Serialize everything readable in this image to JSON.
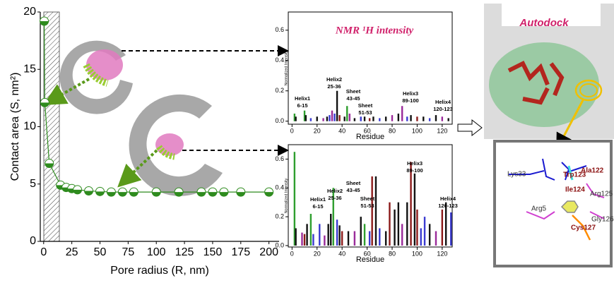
{
  "chart_data": [
    {
      "type": "line",
      "y_label": "Contact area (S, nm²)",
      "x_label": "Pore radius (R, nm)",
      "color": "#2e8b1e",
      "x": [
        0.5,
        1,
        5,
        15,
        20,
        25,
        30,
        40,
        50,
        60,
        70,
        80,
        100,
        120,
        140,
        150,
        160,
        175,
        200
      ],
      "values": [
        19.2,
        12.1,
        6.8,
        4.9,
        4.7,
        4.6,
        4.5,
        4.4,
        4.35,
        4.3,
        4.3,
        4.3,
        4.3,
        4.3,
        4.3,
        4.3,
        4.3,
        4.3,
        4.3
      ],
      "xlim": [
        -3,
        209
      ],
      "ylim": [
        0,
        20
      ],
      "xticks": [
        0,
        25,
        50,
        75,
        100,
        125,
        150,
        175,
        200
      ],
      "yticks": [
        0,
        5,
        10,
        15,
        20
      ]
    },
    {
      "type": "bar",
      "title": "NMR ¹H intensity",
      "x_label": "Residue",
      "y_label": "Normalized Intensity",
      "x": [
        2,
        3,
        10,
        11,
        15,
        20,
        25,
        28,
        30,
        32,
        34,
        36,
        38,
        42,
        44,
        46,
        50,
        55,
        58,
        62,
        65,
        70,
        75,
        80,
        85,
        88,
        92,
        95,
        100,
        105,
        110,
        115,
        120,
        125
      ],
      "values": [
        0.05,
        0.03,
        0.07,
        0.04,
        0.02,
        0.03,
        0.02,
        0.03,
        0.04,
        0.07,
        0.05,
        0.2,
        0.04,
        0.03,
        0.1,
        0.05,
        0.02,
        0.03,
        0.03,
        0.02,
        0.03,
        0.02,
        0.03,
        0.04,
        0.05,
        0.1,
        0.03,
        0.04,
        0.03,
        0.03,
        0.02,
        0.04,
        0.03,
        0.02
      ],
      "colors": [
        "#2e9e2e",
        "#111",
        "#2e9e2e",
        "#111",
        "#3a3ad0",
        "#111",
        "#9a2a9a",
        "#111",
        "#3a3ad0",
        "#9a2a9a",
        "#3a3ad0",
        "#111",
        "#8b1a1a",
        "#111",
        "#2e9e2e",
        "#9a2a9a",
        "#111",
        "#3a3ad0",
        "#111",
        "#8b1a1a",
        "#111",
        "#3a3ad0",
        "#111",
        "#9a2a9a",
        "#111",
        "#9a2a9a",
        "#3a3ad0",
        "#111",
        "#8b1a1a",
        "#111",
        "#3a3ad0",
        "#111",
        "#9a2a9a",
        "#111"
      ],
      "xlim": [
        -3,
        128
      ],
      "ylim": [
        -0.02,
        0.72
      ],
      "xticks": [
        0,
        20,
        40,
        60,
        80,
        100,
        120
      ],
      "yticks": [
        {
          "value": 0,
          "label": "0.0"
        },
        {
          "value": 0.2,
          "label": "0.2"
        },
        {
          "value": 0.4,
          "label": "0.4"
        },
        {
          "value": 0.6,
          "label": "0.6"
        }
      ],
      "annotations": [
        [
          "Helix1",
          "6-15"
        ],
        [
          "Helix2",
          "25-36"
        ],
        [
          "Sheet",
          "43-45"
        ],
        [
          "Sheet",
          "51-53"
        ],
        [
          "Helix3",
          "89-100"
        ],
        [
          "Helix4",
          "120-123"
        ]
      ]
    },
    {
      "type": "bar",
      "x_label": "Residue",
      "y_label": "Normalized Intensity",
      "x": [
        2,
        3,
        8,
        10,
        12,
        15,
        17,
        22,
        26,
        29,
        31,
        33,
        36,
        38,
        40,
        45,
        50,
        55,
        58,
        62,
        64,
        67,
        70,
        75,
        78,
        82,
        85,
        88,
        92,
        95,
        98,
        100,
        103,
        106,
        110,
        115,
        120,
        123,
        127
      ],
      "values": [
        0.65,
        0.12,
        0.09,
        0.08,
        0.15,
        0.22,
        0.08,
        0.15,
        0.07,
        0.15,
        0.22,
        0.4,
        0.18,
        0.14,
        0.1,
        0.1,
        0.1,
        0.2,
        0.15,
        0.1,
        0.48,
        0.48,
        0.12,
        0.1,
        0.3,
        0.25,
        0.3,
        0.15,
        0.3,
        0.58,
        0.5,
        0.25,
        0.12,
        0.2,
        0.15,
        0.1,
        0.25,
        0.3,
        0.23
      ],
      "colors": [
        "#2e9e2e",
        "#111",
        "#9a2a9a",
        "#8b1a1a",
        "#111",
        "#2e9e2e",
        "#3a3ad0",
        "#3a3ad0",
        "#9a2a9a",
        "#111",
        "#111",
        "#2e9e2e",
        "#3a3ad0",
        "#111",
        "#8b1a1a",
        "#111",
        "#9a2a9a",
        "#111",
        "#2e9e2e",
        "#3a3ad0",
        "#8b1a1a",
        "#111",
        "#3a3ad0",
        "#111",
        "#8b1a1a",
        "#111",
        "#111",
        "#9a2a9a",
        "#111",
        "#8b1a1a",
        "#111",
        "#8b1a1a",
        "#3a3ad0",
        "#3a3ad0",
        "#111",
        "#9a2a9a",
        "#8b1a1a",
        "#111",
        "#3a3ad0"
      ],
      "xlim": [
        -3,
        128
      ],
      "ylim": [
        -0.01,
        0.7
      ],
      "xticks": [
        0,
        20,
        40,
        60,
        80,
        100,
        120
      ],
      "yticks": [
        {
          "value": 0,
          "label": "0.0"
        },
        {
          "value": 0.2,
          "label": "0.2"
        },
        {
          "value": 0.4,
          "label": "0.4"
        },
        {
          "value": 0.6,
          "label": "0.6"
        }
      ],
      "annotations": [
        [
          "Helix1",
          "6-15"
        ],
        [
          "Helix2",
          "25-36"
        ],
        [
          "Sheet",
          "43-45"
        ],
        [
          "Sheet",
          "51-53"
        ],
        [
          "Helix3",
          "89-100"
        ],
        [
          "Helix4",
          "120-123"
        ]
      ]
    }
  ],
  "docking_panel": {
    "title": "Autodock",
    "residues": [
      "Lys33",
      "Trp123",
      "Ala122",
      "Ile124",
      "Arg125",
      "Arg5",
      "Gly126",
      "Cys127"
    ]
  }
}
